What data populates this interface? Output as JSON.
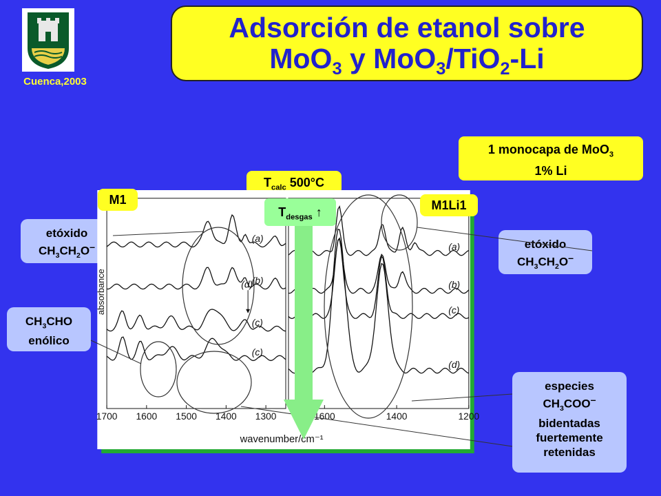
{
  "header": {
    "title_line1": "Adsorción de etanol sobre",
    "title_line2_parts": [
      "MoO",
      "3",
      " y MoO",
      "3",
      "/TiO",
      "2",
      "-Li"
    ],
    "conference": "Cuenca,2003"
  },
  "logo": {
    "icon": "university-shield-icon",
    "colors": [
      "#0a5a2a",
      "#e8d048"
    ]
  },
  "labels": {
    "monolayer_line1_parts": [
      "1 monocapa de MoO",
      "3"
    ],
    "monolayer_line2": "1% Li",
    "tcalc_parts": [
      "T",
      "calc",
      " 500°C"
    ],
    "tdesgas_parts": [
      "T",
      "desgas",
      " ↑"
    ],
    "m1": "M1",
    "m1li1": "M1Li1",
    "ethoxide_left": {
      "line1": "etóxido",
      "line2_parts": [
        "CH",
        "3",
        "CH",
        "2",
        "O",
        "–"
      ]
    },
    "ethoxide_right": {
      "line1": "etóxido",
      "line2_parts": [
        "CH",
        "3",
        "CH",
        "2",
        "O",
        "–"
      ]
    },
    "enol": {
      "line1_parts": [
        "CH",
        "3",
        "CHO"
      ],
      "line2": "enólico"
    },
    "acetate": {
      "line1": "especies",
      "line2_parts": [
        "CH",
        "3",
        "COO",
        "–"
      ],
      "line3": "bidentadas",
      "line4": "fuertemente",
      "line5": "retenidas"
    }
  },
  "colors": {
    "background": "#3333ee",
    "title_fill": "#ffff22",
    "title_text": "#2222cc",
    "label_fill": "#b8c6ff",
    "arrow": "#88ee88"
  },
  "chart_data": {
    "type": "line",
    "ylabel": "absorbance",
    "xlabel": "wavenumber/cm⁻¹",
    "panels": [
      {
        "name": "M1",
        "xlim": [
          1700,
          1250
        ],
        "ticks": [
          "1700",
          "1600",
          "1500",
          "1400",
          "1300"
        ],
        "tick_values": [
          1700,
          1600,
          1500,
          1400,
          1300
        ],
        "series": [
          {
            "name": "(a)",
            "baseline": 0.78,
            "peaks": [
              [
                1445,
                0.12,
                14
              ],
              [
                1385,
                0.14,
                12
              ],
              [
                1352,
                0.06,
                8
              ],
              [
                1275,
                0.04,
                10
              ]
            ]
          },
          {
            "name": "(b)",
            "baseline": 0.58,
            "peaks": [
              [
                1445,
                0.09,
                14
              ],
              [
                1385,
                0.1,
                12
              ],
              [
                1352,
                0.05,
                8
              ],
              [
                1275,
                0.03,
                10
              ]
            ]
          },
          {
            "name": "(c)",
            "baseline": 0.38,
            "peaks": [
              [
                1660,
                0.08,
                12
              ],
              [
                1615,
                0.06,
                12
              ],
              [
                1540,
                0.05,
                20
              ],
              [
                1430,
                0.1,
                25
              ],
              [
                1350,
                0.04,
                12
              ]
            ]
          },
          {
            "name": "(c)",
            "baseline": 0.24,
            "peaks": [
              [
                1660,
                0.09,
                12
              ],
              [
                1615,
                0.07,
                12
              ],
              [
                1540,
                0.05,
                20
              ],
              [
                1430,
                0.09,
                25
              ]
            ]
          }
        ],
        "annotations": [
          {
            "text": "(d)",
            "x": 1345,
            "y": 0.55
          }
        ]
      },
      {
        "name": "M1Li1",
        "xlim": [
          1700,
          1200
        ],
        "ticks": [
          "1600",
          "1400",
          "1200"
        ],
        "tick_values": [
          1600,
          1400,
          1200
        ],
        "series": [
          {
            "name": "(a)",
            "baseline": 0.74,
            "peaks": [
              [
                1560,
                0.22,
                12
              ],
              [
                1440,
                0.15,
                12
              ],
              [
                1385,
                0.12,
                12
              ],
              [
                1350,
                0.06,
                10
              ]
            ]
          },
          {
            "name": "(b)",
            "baseline": 0.56,
            "peaks": [
              [
                1560,
                0.26,
                14
              ],
              [
                1440,
                0.18,
                14
              ],
              [
                1385,
                0.1,
                12
              ]
            ]
          },
          {
            "name": "(c)",
            "baseline": 0.44,
            "peaks": [
              [
                1560,
                0.38,
                16
              ],
              [
                1440,
                0.28,
                16
              ]
            ]
          },
          {
            "name": "(d)",
            "baseline": 0.18,
            "peaks": [
              [
                1560,
                0.68,
                24
              ],
              [
                1440,
                0.5,
                24
              ]
            ]
          }
        ]
      }
    ]
  }
}
